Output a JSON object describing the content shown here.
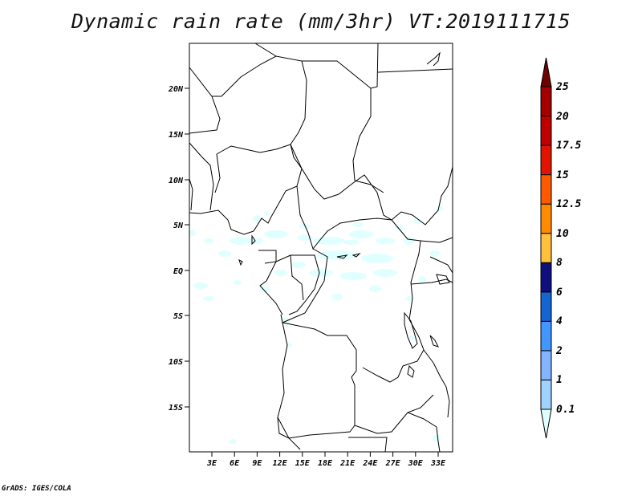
{
  "title": "Dynamic rain rate (mm/3hr) VT:2019111715",
  "credit": "GrADS: IGES/COLA",
  "map": {
    "lat_labels": [
      "20N",
      "15N",
      "10N",
      "5N",
      "EQ",
      "5S",
      "10S",
      "15S"
    ],
    "lon_labels": [
      "3E",
      "6E",
      "9E",
      "12E",
      "15E",
      "18E",
      "21E",
      "24E",
      "27E",
      "30E",
      "33E"
    ],
    "border_color": "#000000",
    "rain_light_color": "#e0ffff"
  },
  "colorbar": {
    "labels": [
      "0.1",
      "1",
      "2",
      "4",
      "6",
      "8",
      "10",
      "12.5",
      "15",
      "17.5",
      "20",
      "25"
    ],
    "colors": [
      "#e0ffff",
      "#a0d2ff",
      "#82b4ff",
      "#4196ff",
      "#1464d2",
      "#0f0f7d",
      "#ffc03c",
      "#ff8a00",
      "#ff5a00",
      "#e11400",
      "#c00000",
      "#a50000",
      "#6e0000"
    ]
  }
}
